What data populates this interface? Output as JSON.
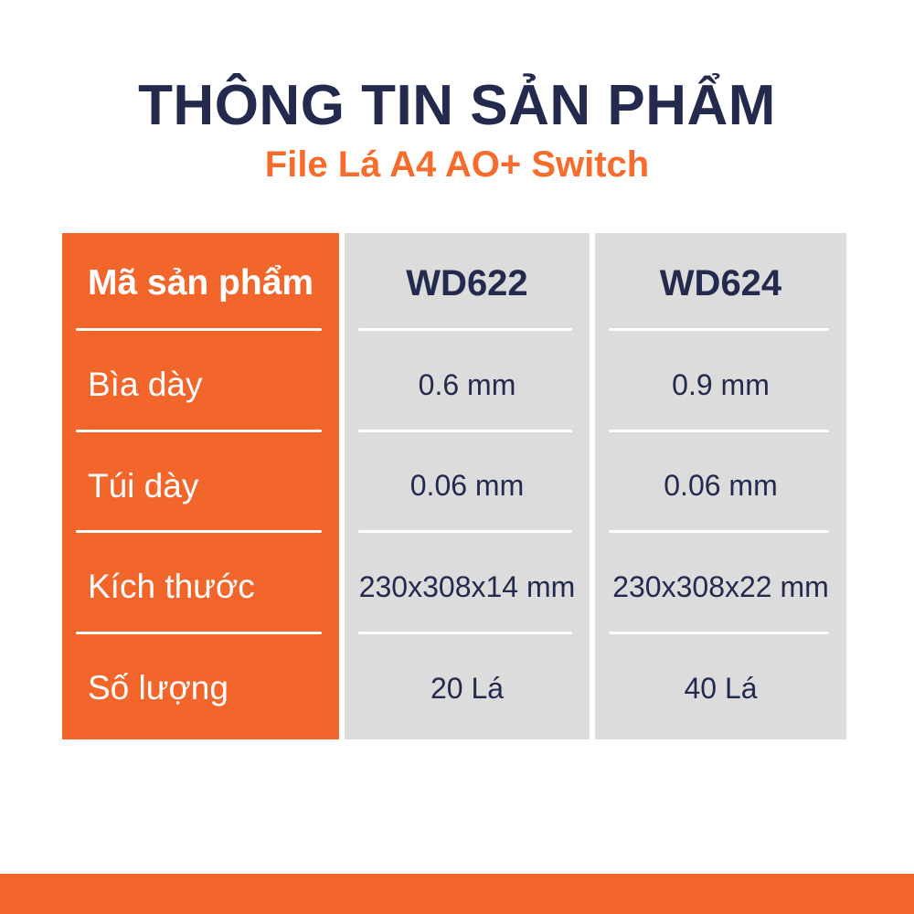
{
  "page": {
    "title": "THÔNG TIN SẢN PHẨM",
    "subtitle": "File Lá A4 AO+ Switch"
  },
  "colors": {
    "title_navy": "#232A4E",
    "subtitle_orange": "#F76C2C",
    "table_label_orange": "#F2662B",
    "table_value_gray": "#DCDCDC",
    "footer_bar_orange": "#F2662B",
    "label_text_white": "#FFFFFF",
    "value_text_navy": "#232A4E"
  },
  "table": {
    "header": {
      "label": "Mã sản phẩm",
      "columns": [
        "WD622",
        "WD624"
      ]
    },
    "rows": [
      {
        "label": "Bìa dày",
        "values": [
          "0.6 mm",
          "0.9 mm"
        ]
      },
      {
        "label": "Túi dày",
        "values": [
          "0.06 mm",
          "0.06 mm"
        ]
      },
      {
        "label": "Kích thước",
        "values": [
          "230x308x14 mm",
          "230x308x22 mm"
        ]
      },
      {
        "label": "Số lượng",
        "values": [
          "20 Lá",
          "40 Lá"
        ]
      }
    ]
  }
}
